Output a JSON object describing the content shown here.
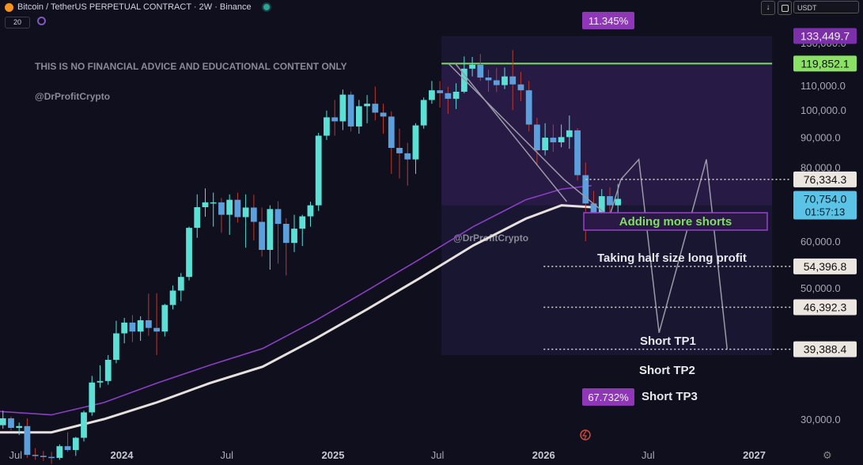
{
  "header": {
    "title": "Bitcoin / TetherUS PERPETUAL CONTRACT · 2W · Binance",
    "timeframe_box": "20",
    "currency": "USDT",
    "down_arrow": "↓"
  },
  "watermark": {
    "disclaimer": "THIS IS NO FINANCIAL ADVICE AND EDUCATIONAL CONTENT ONLY",
    "handle": "@DrProfitCrypto",
    "handle_box": "@DrProfitCrypto"
  },
  "chart_data": {
    "type": "candlestick",
    "y_scale": "log",
    "ylim": [
      26000,
      142000
    ],
    "x_ticks": [
      {
        "label": "Jul",
        "date": "2023-07-01"
      },
      {
        "label": "2024",
        "date": "2024-01-01"
      },
      {
        "label": "Jul",
        "date": "2024-07-01"
      },
      {
        "label": "2025",
        "date": "2025-01-01"
      },
      {
        "label": "Jul",
        "date": "2025-07-01"
      },
      {
        "label": "2026",
        "date": "2026-01-01"
      },
      {
        "label": "Jul",
        "date": "2026-07-01"
      },
      {
        "label": "2027",
        "date": "2027-01-01"
      }
    ],
    "y_ticks": [
      30000,
      40000,
      50000,
      60000,
      70000,
      80000,
      90000,
      100000,
      110000,
      120000,
      130000
    ],
    "y_tick_labels": [
      "30,000.0",
      "40,000.0",
      "50,000.0",
      "60,000.0",
      "70,000.0",
      "80,000.0",
      "90,000.0",
      "100,000.0",
      "110,000.0",
      "120,000.0",
      "130,000.0"
    ],
    "candles": [
      [
        29800,
        30300,
        28500,
        29300
      ],
      [
        29300,
        31000,
        28900,
        30100
      ],
      [
        30100,
        30300,
        28700,
        29000
      ],
      [
        29000,
        29600,
        28200,
        29200
      ],
      [
        29200,
        30100,
        25800,
        26100
      ],
      [
        26100,
        26800,
        25600,
        26000
      ],
      [
        26000,
        26500,
        25500,
        25900
      ],
      [
        25900,
        26400,
        25200,
        25800
      ],
      [
        25800,
        27200,
        25600,
        27000
      ],
      [
        27000,
        28500,
        26400,
        26600
      ],
      [
        26600,
        28000,
        26000,
        27900
      ],
      [
        27900,
        31000,
        27500,
        30800
      ],
      [
        30800,
        35500,
        30400,
        34600
      ],
      [
        34600,
        37000,
        33900,
        34800
      ],
      [
        34800,
        38500,
        34300,
        37800
      ],
      [
        37800,
        44000,
        37300,
        41900
      ],
      [
        41900,
        44500,
        40300,
        43700
      ],
      [
        43700,
        45000,
        40500,
        42200
      ],
      [
        42200,
        44800,
        40700,
        44100
      ],
      [
        44100,
        48900,
        41500,
        42800
      ],
      [
        42800,
        49000,
        38500,
        42200
      ],
      [
        42200,
        47000,
        41400,
        46800
      ],
      [
        46800,
        50500,
        46000,
        49500
      ],
      [
        49500,
        53000,
        47500,
        52200
      ],
      [
        52200,
        63500,
        51500,
        63200
      ],
      [
        63200,
        72000,
        60800,
        68500
      ],
      [
        68500,
        73700,
        66000,
        69800
      ],
      [
        69800,
        72500,
        63500,
        69800
      ],
      [
        69800,
        71000,
        62000,
        66500
      ],
      [
        66500,
        72000,
        61500,
        70500
      ],
      [
        70500,
        72500,
        64500,
        65900
      ],
      [
        65900,
        72000,
        58500,
        68400
      ],
      [
        68400,
        71900,
        60200,
        64700
      ],
      [
        64700,
        68400,
        56500,
        58000
      ],
      [
        58000,
        69000,
        53700,
        68000
      ],
      [
        68000,
        70100,
        55000,
        64200
      ],
      [
        64200,
        65600,
        52500,
        59600
      ],
      [
        59600,
        66500,
        57500,
        63000
      ],
      [
        63000,
        66500,
        58900,
        66100
      ],
      [
        66100,
        70000,
        63500,
        69000
      ],
      [
        69000,
        91500,
        67500,
        90500
      ],
      [
        90500,
        99800,
        89000,
        97200
      ],
      [
        97200,
        104000,
        90500,
        95700
      ],
      [
        95700,
        108300,
        92500,
        106200
      ],
      [
        106200,
        107500,
        92000,
        93800
      ],
      [
        93800,
        104000,
        91200,
        101500
      ],
      [
        101500,
        106000,
        95000,
        102500
      ],
      [
        102500,
        109600,
        96000,
        99000
      ],
      [
        99000,
        102500,
        91200,
        97500
      ],
      [
        97500,
        99500,
        78000,
        86300
      ],
      [
        86300,
        93000,
        76600,
        84500
      ],
      [
        84500,
        88000,
        74500,
        82500
      ],
      [
        82500,
        95000,
        78000,
        94200
      ],
      [
        94200,
        105000,
        93000,
        104000
      ],
      [
        104000,
        112000,
        102500,
        108000
      ],
      [
        108000,
        111900,
        101000,
        106800
      ],
      [
        106800,
        109500,
        98500,
        104500
      ],
      [
        104500,
        111000,
        100400,
        107400
      ],
      [
        107400,
        123200,
        106800,
        117500
      ],
      [
        117500,
        123000,
        114000,
        119300
      ],
      [
        119300,
        124400,
        112000,
        113500
      ],
      [
        113500,
        117000,
        107400,
        112300
      ],
      [
        112300,
        117900,
        107300,
        110200
      ],
      [
        110200,
        118000,
        108500,
        114000
      ],
      [
        114000,
        126300,
        100000,
        110500
      ],
      [
        110500,
        116000,
        103500,
        108000
      ],
      [
        108000,
        112000,
        92000,
        94500
      ],
      [
        94500,
        97000,
        80600,
        85500
      ],
      [
        85500,
        95000,
        83800,
        89800
      ],
      [
        89800,
        94500,
        85000,
        88200
      ],
      [
        88200,
        94500,
        86500,
        90000
      ],
      [
        90000,
        97900,
        86000,
        92400
      ],
      [
        92400,
        93200,
        76000,
        77600
      ],
      [
        77600,
        81500,
        60000,
        69500
      ],
      [
        69500,
        73000,
        62500,
        66000
      ],
      [
        66000,
        73500,
        65000,
        71500
      ],
      [
        71500,
        74000,
        64800,
        69000
      ],
      [
        69000,
        75000,
        66000,
        70754
      ]
    ],
    "ma_purple": [
      [
        "2023-05-15",
        31000
      ],
      [
        "2023-09-01",
        30500
      ],
      [
        "2023-12-01",
        32000
      ],
      [
        "2024-03-01",
        34500
      ],
      [
        "2024-06-01",
        37000
      ],
      [
        "2024-09-01",
        39500
      ],
      [
        "2024-12-01",
        44000
      ],
      [
        "2025-03-01",
        49500
      ],
      [
        "2025-06-01",
        56000
      ],
      [
        "2025-09-01",
        63500
      ],
      [
        "2025-12-01",
        70500
      ],
      [
        "2026-02-01",
        73500
      ],
      [
        "2026-03-25",
        74500
      ]
    ],
    "ma_white": [
      [
        "2023-05-15",
        28500
      ],
      [
        "2023-09-01",
        28500
      ],
      [
        "2023-12-01",
        30000
      ],
      [
        "2024-03-01",
        32000
      ],
      [
        "2024-06-01",
        34500
      ],
      [
        "2024-09-01",
        36800
      ],
      [
        "2024-12-01",
        41000
      ],
      [
        "2025-03-01",
        46000
      ],
      [
        "2025-06-01",
        52000
      ],
      [
        "2025-09-01",
        59000
      ],
      [
        "2025-12-01",
        65500
      ],
      [
        "2026-02-01",
        69000
      ],
      [
        "2026-03-25",
        68500
      ]
    ],
    "green_line": {
      "price": 119852.1,
      "from": "2025-07-08",
      "to": "2027-02-01"
    },
    "measure_box": {
      "from": "2025-07-08",
      "to": "2027-02-01",
      "top": 133449.7,
      "bottom": 38500
    },
    "fib_box": {
      "from": "2025-07-08",
      "to": "2027-02-01",
      "top": 119852.1,
      "bottom": 69000
    },
    "projection": [
      [
        "2025-07-20",
        119852
      ],
      [
        "2026-02-05",
        76334
      ],
      [
        "2026-04-25",
        66000
      ],
      [
        "2026-05-15",
        76334
      ],
      [
        "2026-06-15",
        82500
      ],
      [
        "2026-07-20",
        42000
      ],
      [
        "2026-10-10",
        82500
      ],
      [
        "2026-11-15",
        39388
      ]
    ],
    "trend_line": [
      [
        "2025-08-01",
        119852
      ],
      [
        "2026-02-10",
        70000
      ]
    ],
    "levels": [
      {
        "price": 76334.3,
        "label": "76,334.3",
        "from": "2026-03-15"
      },
      {
        "price": 54396.8,
        "label": "54,396.8",
        "from": "2026-01-01"
      },
      {
        "price": 46392.3,
        "label": "46,392.3",
        "from": "2026-01-01"
      },
      {
        "price": 39388.4,
        "label": "39,388.4",
        "from": "2026-01-01"
      }
    ],
    "price_tags": {
      "top": {
        "price": 133449.7,
        "label": "133,449.7",
        "color": "#7b2fa8"
      },
      "green": {
        "price": 119852.1,
        "label": "119,852.1",
        "color": "#8ae264"
      },
      "current": {
        "price": 70754.0,
        "label": "70,754.0",
        "timer": "01:57:13",
        "color": "#5bc4e6"
      }
    },
    "annotations": {
      "pct_top": "11.345%",
      "pct_bottom": "67.732%",
      "adding_shorts": "Adding more shorts",
      "taking_profit": "Taking half size long profit",
      "tp1": "Short TP1",
      "tp2": "Short TP2",
      "tp3": "Short TP3"
    },
    "colors": {
      "bull": "#5ce0d5",
      "bear": "#5b9fdc",
      "wick_bull": "#5ce0d5",
      "wick_bear": "#c0392b",
      "green_line": "#7ee061",
      "purple": "#8a3fc2",
      "white_ma": "#e8e0dc"
    }
  }
}
